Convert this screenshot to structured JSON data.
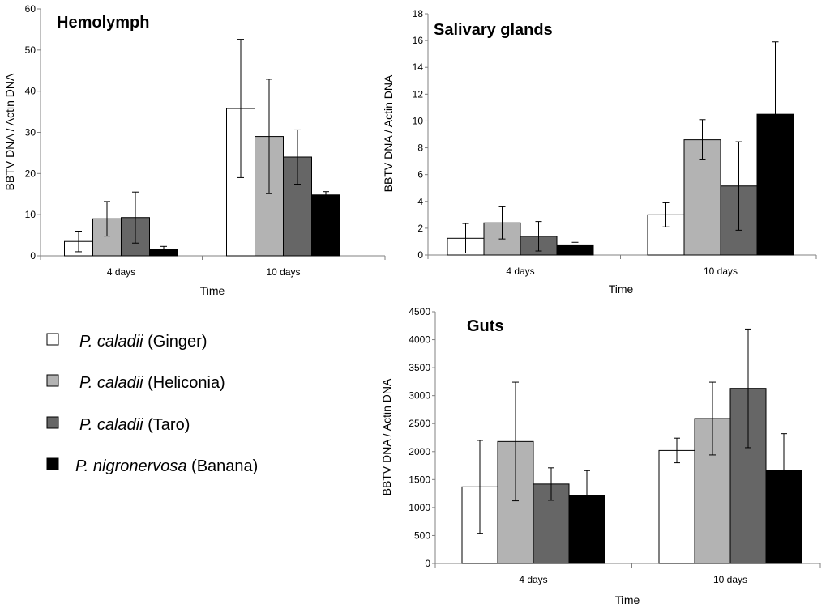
{
  "legend": [
    {
      "species": "P. caladii",
      "host": " (Ginger)",
      "color": "#ffffff"
    },
    {
      "species": "P. caladii",
      "host": " (Heliconia)",
      "color": "#b3b3b3"
    },
    {
      "species": "P. caladii",
      "host": " (Taro)",
      "color": "#666666"
    },
    {
      "species": "P. nigronervosa",
      "host": " (Banana)",
      "color": "#000000"
    }
  ],
  "chart_data": [
    {
      "type": "bar",
      "title": "Hemolymph",
      "xlabel": "Time",
      "ylabel": "BBTV DNA / Actin DNA",
      "ylim": [
        0,
        60
      ],
      "yticks": [
        0,
        10,
        20,
        30,
        40,
        50,
        60
      ],
      "categories": [
        "4 days",
        "10 days"
      ],
      "series": [
        {
          "name": "P. caladii (Ginger)",
          "values": [
            3.5,
            35.8
          ],
          "errors": [
            2.5,
            16.8
          ]
        },
        {
          "name": "P. caladii (Heliconia)",
          "values": [
            9.0,
            29.0
          ],
          "errors": [
            4.2,
            13.9
          ]
        },
        {
          "name": "P. caladii (Taro)",
          "values": [
            9.3,
            24.0
          ],
          "errors": [
            6.2,
            6.6
          ]
        },
        {
          "name": "P. nigronervosa (Banana)",
          "values": [
            1.6,
            14.8
          ],
          "errors": [
            0.7,
            0.8
          ]
        }
      ]
    },
    {
      "type": "bar",
      "title": "Salivary glands",
      "xlabel": "Time",
      "ylabel": "BBTV DNA / Actin DNA",
      "ylim": [
        0,
        18
      ],
      "yticks": [
        0,
        2,
        4,
        6,
        8,
        10,
        12,
        14,
        16,
        18
      ],
      "categories": [
        "4 days",
        "10 days"
      ],
      "series": [
        {
          "name": "P. caladii (Ginger)",
          "values": [
            1.25,
            3.0
          ],
          "errors": [
            1.1,
            0.9
          ]
        },
        {
          "name": "P. caladii (Heliconia)",
          "values": [
            2.4,
            8.6
          ],
          "errors": [
            1.2,
            1.5
          ]
        },
        {
          "name": "P. caladii (Taro)",
          "values": [
            1.4,
            5.15
          ],
          "errors": [
            1.1,
            3.3
          ]
        },
        {
          "name": "P. nigronervosa (Banana)",
          "values": [
            0.7,
            10.5
          ],
          "errors": [
            0.25,
            5.4
          ]
        }
      ]
    },
    {
      "type": "bar",
      "title": "Guts",
      "xlabel": "Time",
      "ylabel": "BBTV DNA / Actin DNA",
      "ylim": [
        0,
        4500
      ],
      "yticks": [
        0,
        500,
        1000,
        1500,
        2000,
        2500,
        3000,
        3500,
        4000,
        4500
      ],
      "categories": [
        "4 days",
        "10 days"
      ],
      "series": [
        {
          "name": "P. caladii (Ginger)",
          "values": [
            1370,
            2020
          ],
          "errors": [
            830,
            220
          ]
        },
        {
          "name": "P. caladii (Heliconia)",
          "values": [
            2180,
            2590
          ],
          "errors": [
            1060,
            650
          ]
        },
        {
          "name": "P. caladii (Taro)",
          "values": [
            1420,
            3130
          ],
          "errors": [
            290,
            1060
          ]
        },
        {
          "name": "P. nigronervosa (Banana)",
          "values": [
            1210,
            1670
          ],
          "errors": [
            450,
            650
          ]
        }
      ]
    }
  ]
}
